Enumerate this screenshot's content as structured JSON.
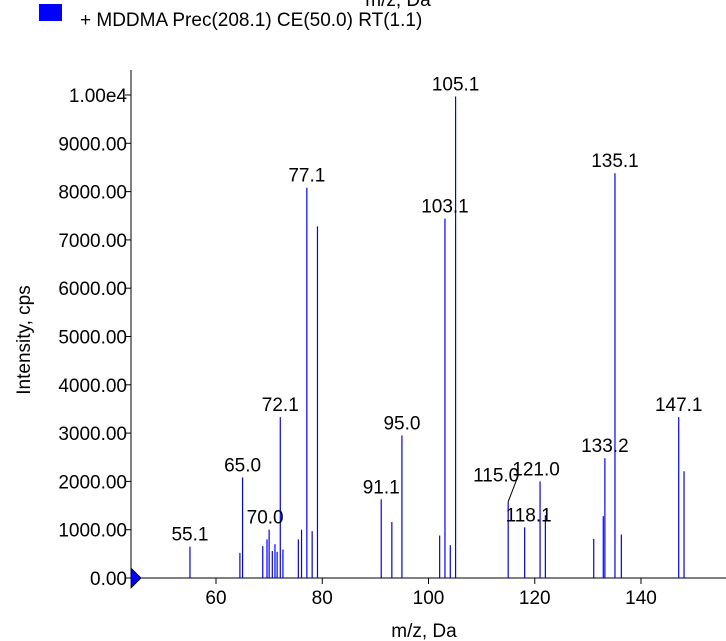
{
  "chart_data": {
    "type": "bar",
    "top_axis_label": "m/z, Da",
    "legend": {
      "swatch_color": "#0000ff",
      "label": "+ MDDMA Prec(208.1) CE(50.0) RT(1.1)",
      "placement": "top-left"
    },
    "xlabel": "m/z, Da",
    "ylabel": "Intensity, cps",
    "xlim": [
      44,
      156
    ],
    "ylim": [
      0,
      10000
    ],
    "x_ticks": [
      {
        "value": 60,
        "label": "60"
      },
      {
        "value": 80,
        "label": "80"
      },
      {
        "value": 100,
        "label": "100"
      },
      {
        "value": 120,
        "label": "120"
      },
      {
        "value": 140,
        "label": "140"
      }
    ],
    "y_ticks": [
      {
        "value": 0,
        "label": "0.00"
      },
      {
        "value": 1000,
        "label": "1000.00"
      },
      {
        "value": 2000,
        "label": "2000.00"
      },
      {
        "value": 3000,
        "label": "3000.00"
      },
      {
        "value": 4000,
        "label": "4000.00"
      },
      {
        "value": 5000,
        "label": "5000.00"
      },
      {
        "value": 6000,
        "label": "6000.00"
      },
      {
        "value": 7000,
        "label": "7000.00"
      },
      {
        "value": 8000,
        "label": "8000.00"
      },
      {
        "value": 9000,
        "label": "9000.00"
      },
      {
        "value": 10000,
        "label": "1.00e4"
      }
    ],
    "series_color": "#0000ff",
    "peaks": [
      {
        "mz": 55.1,
        "intensity": 650,
        "label": "55.1"
      },
      {
        "mz": 64.5,
        "intensity": 520
      },
      {
        "mz": 65.0,
        "intensity": 2080,
        "label": "65.0"
      },
      {
        "mz": 68.8,
        "intensity": 660
      },
      {
        "mz": 69.6,
        "intensity": 800
      },
      {
        "mz": 70.0,
        "intensity": 1000,
        "label": "70.0"
      },
      {
        "mz": 70.6,
        "intensity": 560
      },
      {
        "mz": 71.1,
        "intensity": 700
      },
      {
        "mz": 71.5,
        "intensity": 540
      },
      {
        "mz": 72.1,
        "intensity": 3330,
        "label": "72.1"
      },
      {
        "mz": 72.6,
        "intensity": 590
      },
      {
        "mz": 75.5,
        "intensity": 800
      },
      {
        "mz": 76.1,
        "intensity": 1000
      },
      {
        "mz": 77.1,
        "intensity": 8080,
        "label": "77.1"
      },
      {
        "mz": 78.1,
        "intensity": 970
      },
      {
        "mz": 79.1,
        "intensity": 7280
      },
      {
        "mz": 91.1,
        "intensity": 1630,
        "label": "91.1"
      },
      {
        "mz": 93.1,
        "intensity": 1160
      },
      {
        "mz": 95.0,
        "intensity": 2950,
        "label": "95.0"
      },
      {
        "mz": 102.1,
        "intensity": 880
      },
      {
        "mz": 103.1,
        "intensity": 7440,
        "label": "103.1"
      },
      {
        "mz": 104.1,
        "intensity": 680
      },
      {
        "mz": 105.1,
        "intensity": 9970,
        "label": "105.1"
      },
      {
        "mz": 115.0,
        "intensity": 1580,
        "label": "115.0"
      },
      {
        "mz": 118.1,
        "intensity": 1050,
        "label": "118.1"
      },
      {
        "mz": 121.0,
        "intensity": 2000,
        "label": "121.0"
      },
      {
        "mz": 122.0,
        "intensity": 1300
      },
      {
        "mz": 131.1,
        "intensity": 810
      },
      {
        "mz": 132.9,
        "intensity": 1280
      },
      {
        "mz": 133.2,
        "intensity": 2480,
        "label": "133.2"
      },
      {
        "mz": 135.1,
        "intensity": 8380,
        "label": "135.1"
      },
      {
        "mz": 136.3,
        "intensity": 900
      },
      {
        "mz": 147.1,
        "intensity": 3330,
        "label": "147.1"
      },
      {
        "mz": 148.1,
        "intensity": 2210
      }
    ]
  }
}
